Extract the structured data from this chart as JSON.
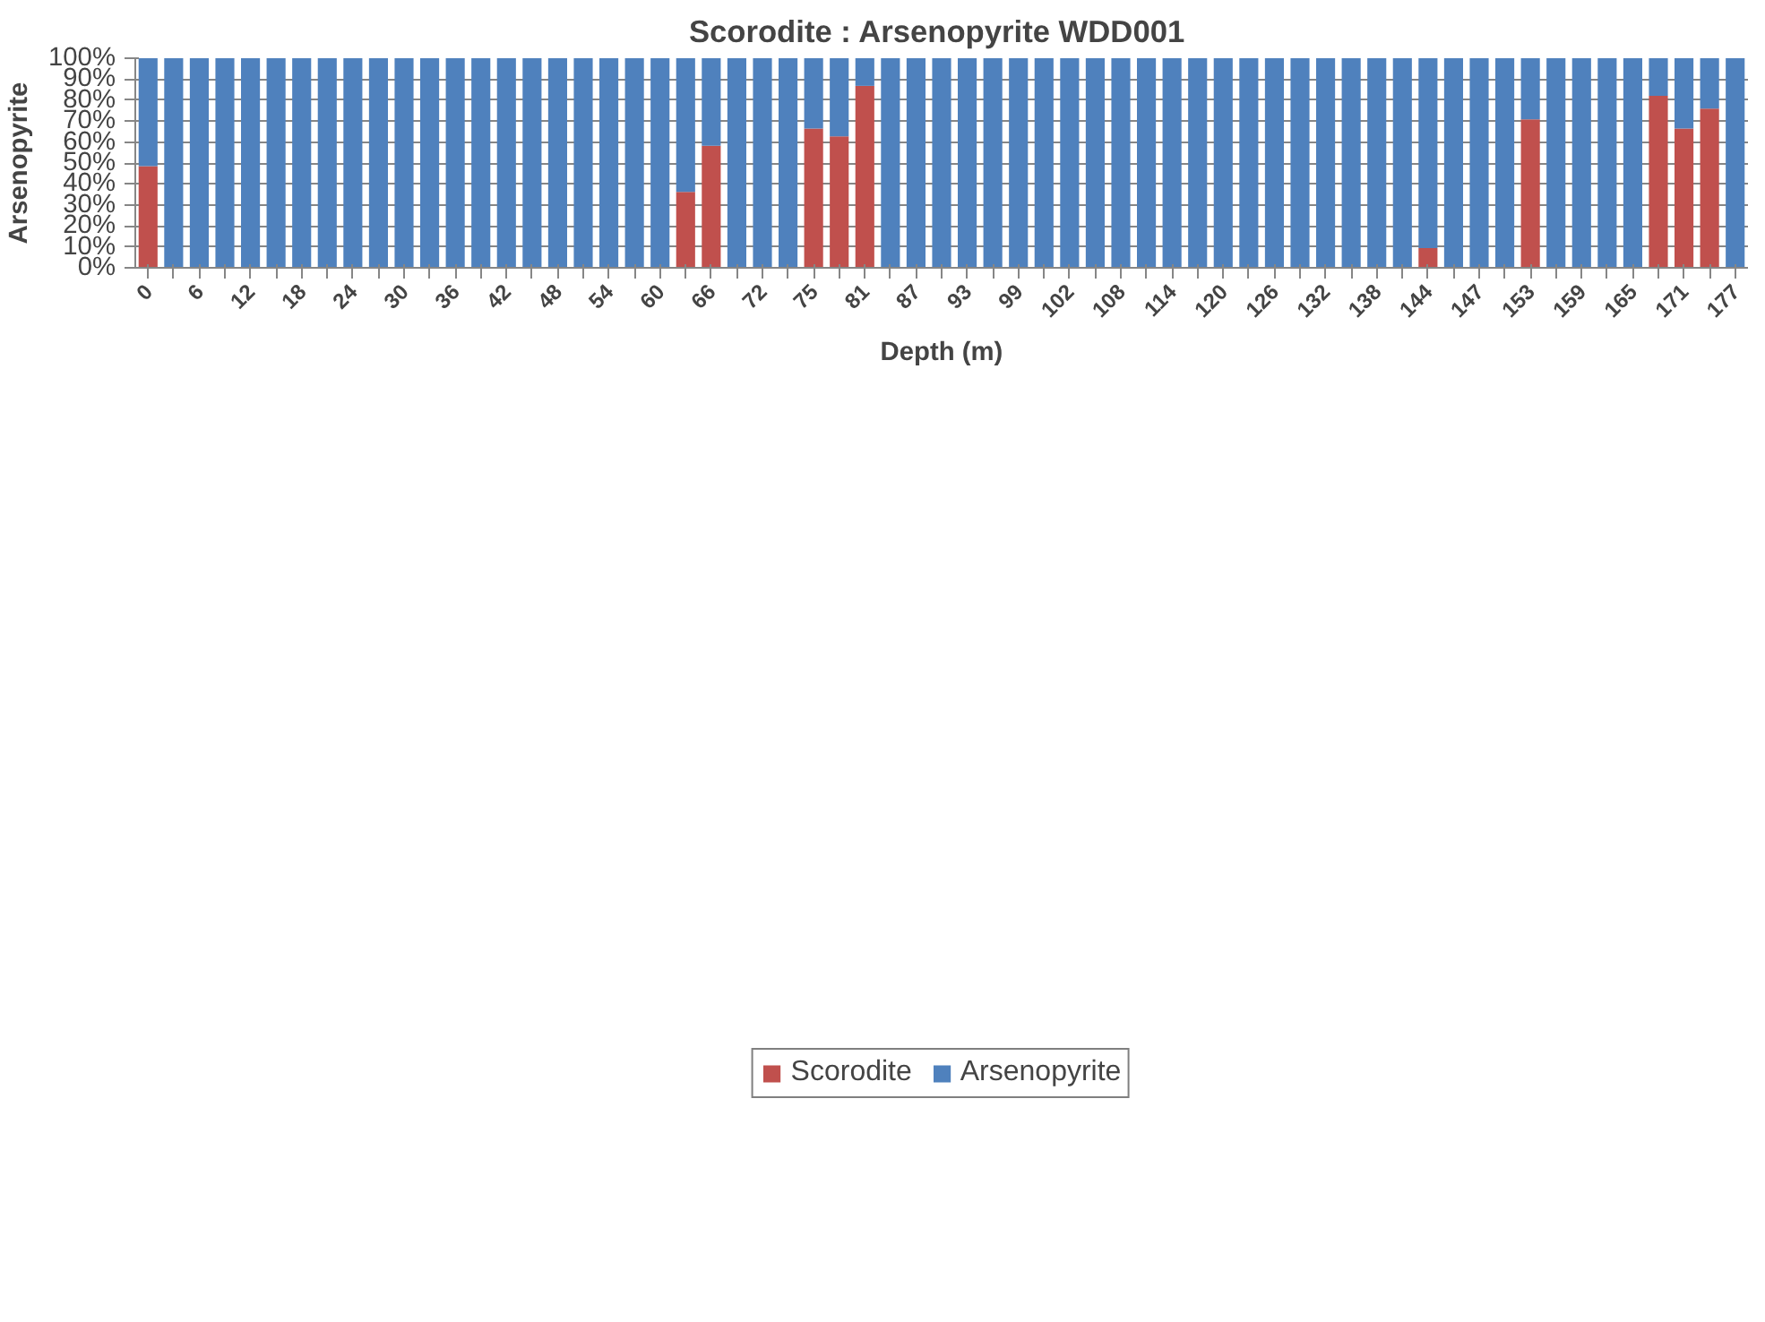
{
  "chart_data": {
    "type": "bar",
    "title": "Scorodite : Arsenopyrite  WDD001",
    "xlabel": "Depth (m)",
    "ylabel": "Arsenopyrite",
    "categories": [
      "0",
      null,
      "6",
      null,
      "12",
      null,
      "18",
      null,
      "24",
      null,
      "30",
      null,
      "36",
      null,
      "42",
      null,
      "48",
      null,
      "54",
      null,
      "60",
      null,
      "66",
      null,
      "72",
      null,
      "75",
      null,
      "81",
      null,
      "87",
      null,
      "93",
      null,
      "99",
      null,
      "102",
      null,
      "108",
      null,
      "114",
      null,
      "120",
      null,
      "126",
      null,
      "132",
      null,
      "138",
      null,
      "144",
      null,
      "147",
      null,
      "153",
      null,
      "159",
      null,
      "165",
      null,
      "171",
      null,
      "177"
    ],
    "stacked": true,
    "series": [
      {
        "name": "Scorodite",
        "color": "#c0504d",
        "values": [
          48.5,
          0,
          0,
          0,
          0,
          0,
          0,
          0,
          0,
          0,
          0,
          0,
          0,
          0,
          0,
          0,
          0,
          0,
          0,
          0,
          0,
          36.2,
          58.2,
          0,
          0,
          0,
          66.5,
          62.7,
          86.8,
          0,
          0,
          0,
          0,
          0,
          0,
          0,
          0,
          0,
          0,
          0,
          0,
          0,
          0,
          0,
          0,
          0,
          0,
          0,
          0,
          0,
          9.4,
          0,
          0,
          0,
          70.8,
          0,
          0,
          0,
          0,
          82.0,
          66.5,
          76.0,
          0
        ]
      },
      {
        "name": "Arsenopyrite",
        "color": "#4f81bd",
        "values": [
          51.5,
          100,
          100,
          100,
          100,
          100,
          100,
          100,
          100,
          100,
          100,
          100,
          100,
          100,
          100,
          100,
          100,
          100,
          100,
          100,
          100,
          63.8,
          41.8,
          100,
          100,
          100,
          33.5,
          37.3,
          13.2,
          100,
          100,
          100,
          100,
          100,
          100,
          100,
          100,
          100,
          100,
          100,
          100,
          100,
          100,
          100,
          100,
          100,
          100,
          100,
          100,
          100,
          90.6,
          100,
          100,
          100,
          29.2,
          100,
          100,
          100,
          100,
          18.0,
          33.5,
          24.0,
          100
        ]
      }
    ],
    "ylim": [
      0,
      100
    ],
    "yticks": [
      {
        "value": 0,
        "label": "0%"
      },
      {
        "value": 10,
        "label": "10%"
      },
      {
        "value": 20,
        "label": "20%"
      },
      {
        "value": 30,
        "label": "30%"
      },
      {
        "value": 40,
        "label": "40%"
      },
      {
        "value": 50,
        "label": "50%"
      },
      {
        "value": 60,
        "label": "60%"
      },
      {
        "value": 70,
        "label": "70%"
      },
      {
        "value": 80,
        "label": "80%"
      },
      {
        "value": 90,
        "label": "90%"
      },
      {
        "value": 100,
        "label": "100%"
      }
    ],
    "grid": "y",
    "legend": "bottom"
  }
}
